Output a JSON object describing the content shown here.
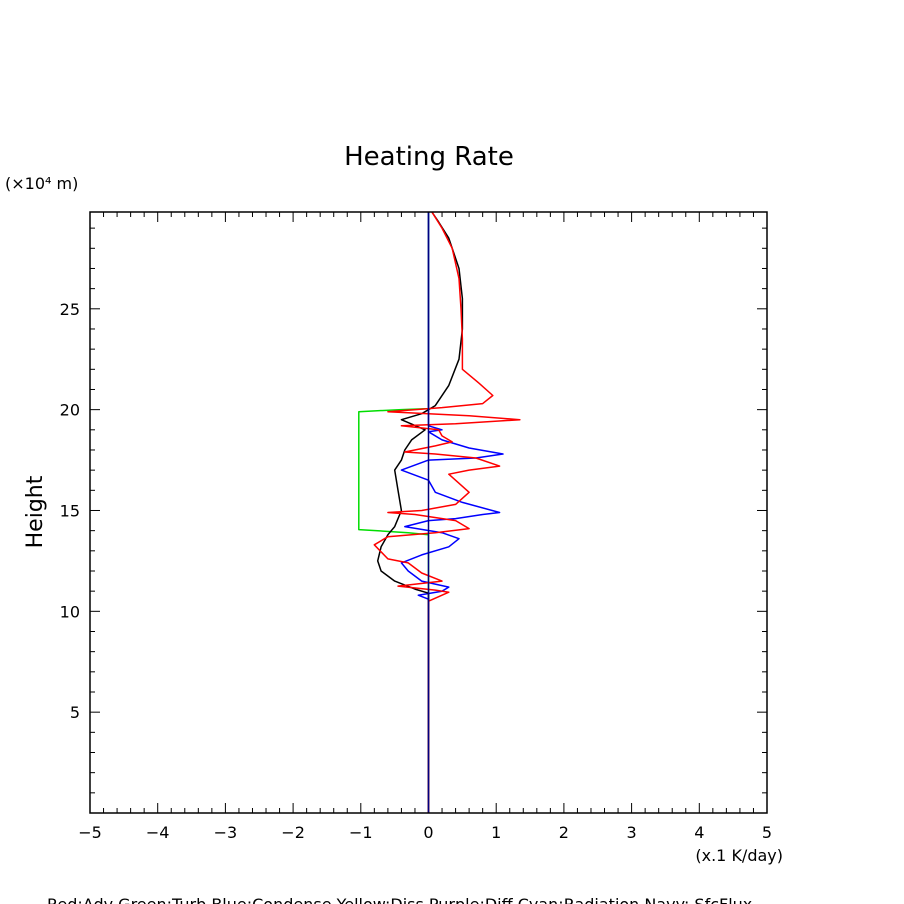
{
  "chart_data": {
    "type": "line",
    "title": "Heating Rate",
    "ylabel": "Height",
    "y_unit": "(×10⁴ m)",
    "x_unit": "(x.1 K/day)",
    "legend_text": "Red:Adv  Green:Turb  Blue:Condense  Yellow:Diss  Purple:Diff  Cyan:Radiation  Navy: SfcFlux",
    "xlim": [
      -5,
      5
    ],
    "ylim": [
      0,
      29.8
    ],
    "x_ticks": [
      -5,
      -4,
      -3,
      -2,
      -1,
      0,
      1,
      2,
      3,
      4,
      5
    ],
    "y_ticks": [
      5,
      10,
      15,
      20,
      25
    ],
    "colors": {
      "total": "#000000",
      "adv": "#ff0000",
      "turb": "#00dd00",
      "condense": "#0000ff",
      "sfcflux": "#000080",
      "axes": "#000000"
    },
    "series": [
      {
        "key": "turb",
        "points": [
          [
            0,
            0
          ],
          [
            0,
            13.8
          ],
          [
            -0.3,
            13.9
          ],
          [
            -1.03,
            14.05
          ],
          [
            -1.03,
            19.9
          ],
          [
            -0.4,
            20.0
          ],
          [
            0,
            20.05
          ],
          [
            0,
            29.8
          ]
        ]
      },
      {
        "key": "condense",
        "points": [
          [
            0,
            0
          ],
          [
            0,
            10.6
          ],
          [
            -0.15,
            10.8
          ],
          [
            0.2,
            11.0
          ],
          [
            0.3,
            11.2
          ],
          [
            -0.1,
            11.5
          ],
          [
            -0.3,
            12.0
          ],
          [
            -0.4,
            12.4
          ],
          [
            -0.1,
            12.8
          ],
          [
            0.3,
            13.2
          ],
          [
            0.45,
            13.6
          ],
          [
            0.2,
            13.9
          ],
          [
            -0.35,
            14.2
          ],
          [
            0,
            14.5
          ],
          [
            0.4,
            14.6
          ],
          [
            0.8,
            14.8
          ],
          [
            1.05,
            14.9
          ],
          [
            0.5,
            15.4
          ],
          [
            0.1,
            15.9
          ],
          [
            0,
            16.5
          ],
          [
            -0.4,
            17.0
          ],
          [
            0,
            17.5
          ],
          [
            0.7,
            17.6
          ],
          [
            1.1,
            17.8
          ],
          [
            0.6,
            18.1
          ],
          [
            0.2,
            18.5
          ],
          [
            0,
            18.9
          ],
          [
            0.2,
            19.0
          ],
          [
            0,
            19.2
          ],
          [
            0,
            29.8
          ]
        ]
      },
      {
        "key": "total",
        "points": [
          [
            0,
            0
          ],
          [
            0,
            10.5
          ],
          [
            0,
            10.9
          ],
          [
            -0.2,
            11.1
          ],
          [
            -0.5,
            11.5
          ],
          [
            -0.7,
            12.0
          ],
          [
            -0.75,
            12.5
          ],
          [
            -0.7,
            13.2
          ],
          [
            -0.6,
            13.8
          ],
          [
            -0.5,
            14.2
          ],
          [
            -0.4,
            15.0
          ],
          [
            -0.45,
            16.0
          ],
          [
            -0.5,
            17.0
          ],
          [
            -0.4,
            17.5
          ],
          [
            -0.35,
            18.0
          ],
          [
            -0.25,
            18.5
          ],
          [
            -0.05,
            19.0
          ],
          [
            -0.4,
            19.5
          ],
          [
            -0.1,
            19.8
          ],
          [
            0.1,
            20.2
          ],
          [
            0.3,
            21.2
          ],
          [
            0.45,
            22.5
          ],
          [
            0.5,
            24.0
          ],
          [
            0.5,
            25.5
          ],
          [
            0.45,
            27.0
          ],
          [
            0.3,
            28.5
          ],
          [
            0.15,
            29.3
          ],
          [
            0.05,
            29.8
          ]
        ]
      },
      {
        "key": "adv",
        "points": [
          [
            0,
            0
          ],
          [
            0,
            10.5
          ],
          [
            0.3,
            10.95
          ],
          [
            0.1,
            11.05
          ],
          [
            -0.45,
            11.25
          ],
          [
            0.2,
            11.5
          ],
          [
            -0.1,
            11.9
          ],
          [
            -0.3,
            12.4
          ],
          [
            -0.6,
            12.6
          ],
          [
            -0.8,
            13.3
          ],
          [
            -0.6,
            13.7
          ],
          [
            0.1,
            13.9
          ],
          [
            0.6,
            14.1
          ],
          [
            0.4,
            14.5
          ],
          [
            -0.2,
            14.8
          ],
          [
            -0.6,
            14.9
          ],
          [
            -0.1,
            15.0
          ],
          [
            0.4,
            15.3
          ],
          [
            0.6,
            15.9
          ],
          [
            0.5,
            16.2
          ],
          [
            0.3,
            16.8
          ],
          [
            0.6,
            17.0
          ],
          [
            1.05,
            17.2
          ],
          [
            0.7,
            17.6
          ],
          [
            0.1,
            17.8
          ],
          [
            -0.35,
            17.9
          ],
          [
            0.1,
            18.2
          ],
          [
            0.35,
            18.4
          ],
          [
            0.2,
            18.7
          ],
          [
            0.15,
            19.0
          ],
          [
            -0.4,
            19.2
          ],
          [
            0.4,
            19.3
          ],
          [
            1.35,
            19.5
          ],
          [
            0.6,
            19.7
          ],
          [
            -0.6,
            19.9
          ],
          [
            0.2,
            20.1
          ],
          [
            0.8,
            20.3
          ],
          [
            0.95,
            20.7
          ],
          [
            0.75,
            21.3
          ],
          [
            0.5,
            22.0
          ],
          [
            0.5,
            23.5
          ],
          [
            0.48,
            25.0
          ],
          [
            0.45,
            26.5
          ],
          [
            0.35,
            28.0
          ],
          [
            0.2,
            29.0
          ],
          [
            0.05,
            29.8
          ]
        ]
      },
      {
        "key": "sfcflux",
        "points": [
          [
            0,
            0
          ],
          [
            0,
            29.8
          ]
        ]
      }
    ]
  }
}
